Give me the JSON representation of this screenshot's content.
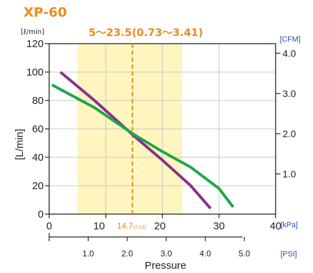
{
  "chart_data": {
    "type": "line",
    "title": "XP-60",
    "subtitle": "5～23.5(0.73～3.41)",
    "ylabel": "[L/min]",
    "ylabel_unit": "[ℓ/min]",
    "xlabel": "Pressure",
    "x_unit": "[kPa]",
    "x2_unit": "[PSI]",
    "y2_unit": "[CFM]",
    "xlim": [
      0,
      40
    ],
    "ylim": [
      0,
      120
    ],
    "x2lim": [
      0,
      5.8
    ],
    "y2lim": [
      0,
      4.24
    ],
    "grid": true,
    "x_ticks": [
      0,
      10,
      20,
      30,
      40
    ],
    "x_tick_labels": [
      "0",
      "10",
      "20",
      "30",
      "40"
    ],
    "y_ticks": [
      0,
      20,
      40,
      60,
      80,
      100,
      120
    ],
    "y_tick_labels": [
      "0",
      "20",
      "40",
      "60",
      "80",
      "100",
      "120"
    ],
    "y2_ticks": [
      1.0,
      2.0,
      3.0,
      4.0
    ],
    "y2_tick_labels": [
      "1.0",
      "2.0",
      "3.0",
      "4.0"
    ],
    "x2_ticks": [
      1.0,
      2.0,
      3.0,
      4.0,
      5.0
    ],
    "x2_tick_labels": [
      "1.0",
      "2.0",
      "3.0",
      "4.0",
      "5.0"
    ],
    "shaded_range": {
      "x0": 5,
      "x1": 23.5
    },
    "marker": {
      "x": 14.7,
      "label": "14.7",
      "sublabel": "(2.13)"
    },
    "series": [
      {
        "color": "#8b2f8c",
        "x": [
          2,
          8,
          15,
          20,
          25,
          28.5
        ],
        "y": [
          100,
          80,
          55,
          38,
          20,
          4
        ]
      },
      {
        "color": "#1ea64b",
        "x": [
          0.5,
          8,
          15,
          20,
          25,
          30,
          32.5
        ],
        "y": [
          91,
          75,
          56,
          44,
          33,
          18,
          5
        ]
      }
    ],
    "colors": {
      "band": "#fff5bf",
      "marker": "#f08a1c",
      "grid": "#c8c8c8",
      "axis": "#222222"
    }
  }
}
